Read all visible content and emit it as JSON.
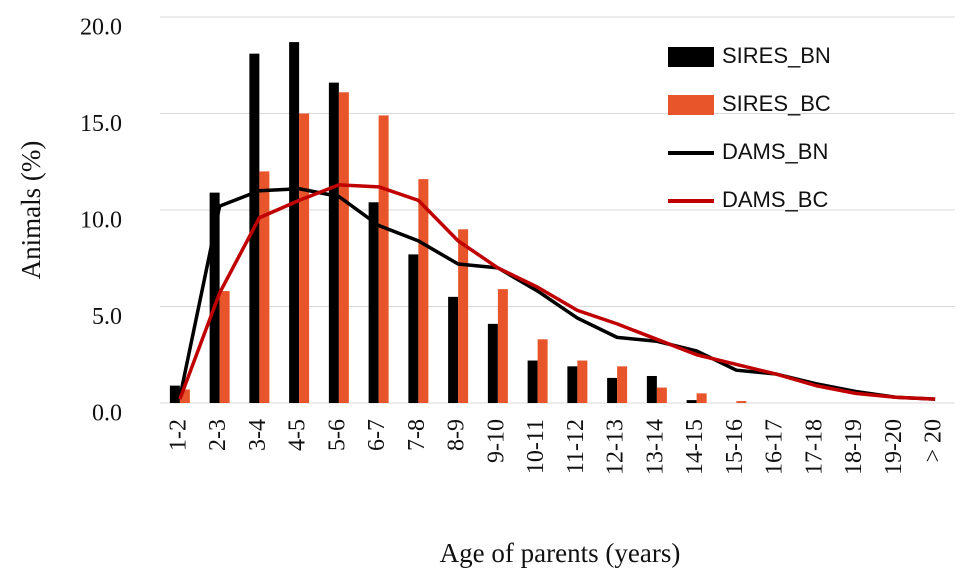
{
  "chart_data": {
    "type": "bar_line",
    "x_label": "Age of parents (years)",
    "y_label": "Animals (%)",
    "categories": [
      "1-2",
      "2-3",
      "3-4",
      "4-5",
      "5-6",
      "6-7",
      "7-8",
      "8-9",
      "9-10",
      "10-11",
      "11-12",
      "12-13",
      "13-14",
      "14-15",
      "15-16",
      "16-17",
      "17-18",
      "18-19",
      "19-20",
      "> 20"
    ],
    "series": [
      {
        "name": "SIRES_BN",
        "kind": "bar",
        "color": "#000000",
        "values": [
          0.9,
          10.9,
          18.1,
          18.7,
          16.6,
          10.4,
          7.7,
          5.5,
          4.1,
          2.2,
          1.9,
          1.3,
          1.4,
          0.15,
          0,
          0,
          0,
          0,
          0,
          0
        ]
      },
      {
        "name": "SIRES_BC",
        "kind": "bar",
        "color": "#e8552a",
        "values": [
          0.7,
          5.8,
          12.0,
          15.0,
          16.1,
          14.9,
          11.6,
          9.0,
          5.9,
          3.3,
          2.2,
          1.9,
          0.8,
          0.5,
          0.1,
          0,
          0,
          0,
          0,
          0
        ]
      },
      {
        "name": "DAMS_BN",
        "kind": "line",
        "color": "#000000",
        "values": [
          0.3,
          10.2,
          11.0,
          11.1,
          10.7,
          9.2,
          8.4,
          7.2,
          7.0,
          5.8,
          4.4,
          3.4,
          3.2,
          2.7,
          1.7,
          1.5,
          1.0,
          0.6,
          0.3,
          0.2
        ]
      },
      {
        "name": "DAMS_BC",
        "kind": "line",
        "color": "#c00000",
        "values": [
          0.2,
          5.7,
          9.6,
          10.5,
          11.3,
          11.2,
          10.5,
          8.4,
          7.0,
          6.0,
          4.8,
          4.1,
          3.3,
          2.5,
          2.0,
          1.5,
          0.9,
          0.5,
          0.3,
          0.2
        ]
      }
    ],
    "ylim": [
      0,
      20
    ],
    "yticks": [
      {
        "value": 0,
        "label": "0.0"
      },
      {
        "value": 5,
        "label": "5.0"
      },
      {
        "value": 10,
        "label": "10.0"
      },
      {
        "value": 15,
        "label": "15.0"
      },
      {
        "value": 20,
        "label": "20.0"
      }
    ],
    "grid": true,
    "legend": "upper right"
  }
}
